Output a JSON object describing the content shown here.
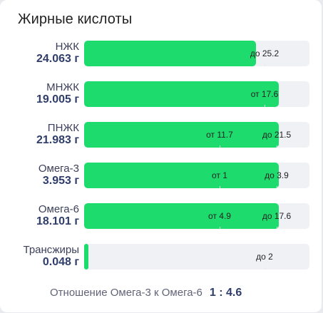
{
  "card": {
    "title": "Жирные кислоты"
  },
  "rows": [
    {
      "label": "НЖК",
      "value": "24.063 г",
      "fill_fraction": 0.764,
      "marks": [
        {
          "text": "до 25.2",
          "at": 0.8
        }
      ]
    },
    {
      "label": "МНЖК",
      "value": "19.005 г",
      "fill_fraction": 0.863,
      "marks": [
        {
          "text": "от 17.6",
          "at": 0.8
        }
      ]
    },
    {
      "label": "ПНЖК",
      "value": "21.983 г",
      "fill_fraction": 0.865,
      "marks": [
        {
          "text": "от 11.7",
          "at": 0.6
        },
        {
          "text": "до 21.5",
          "at": 0.855
        }
      ]
    },
    {
      "label": "Омега-3",
      "value": "3.953 г",
      "fill_fraction": 0.865,
      "marks": [
        {
          "text": "от 1",
          "at": 0.6
        },
        {
          "text": "до 3.9",
          "at": 0.855
        }
      ]
    },
    {
      "label": "Омега-6",
      "value": "18.101 г",
      "fill_fraction": 0.865,
      "marks": [
        {
          "text": "от 4.9",
          "at": 0.6
        },
        {
          "text": "до 17.6",
          "at": 0.855
        }
      ]
    },
    {
      "label": "Трансжиры",
      "value": "0.048 г",
      "fill_fraction": 0.019,
      "marks": [
        {
          "text": "до 2",
          "at": 0.8
        }
      ]
    }
  ],
  "ratio": {
    "label": "Отношение Омега-3 к Омега-6",
    "value": "1 : 4.6"
  },
  "colors": {
    "fill": "#1edb6d",
    "track": "#f0f1f4",
    "value": "#2f3d6b"
  }
}
